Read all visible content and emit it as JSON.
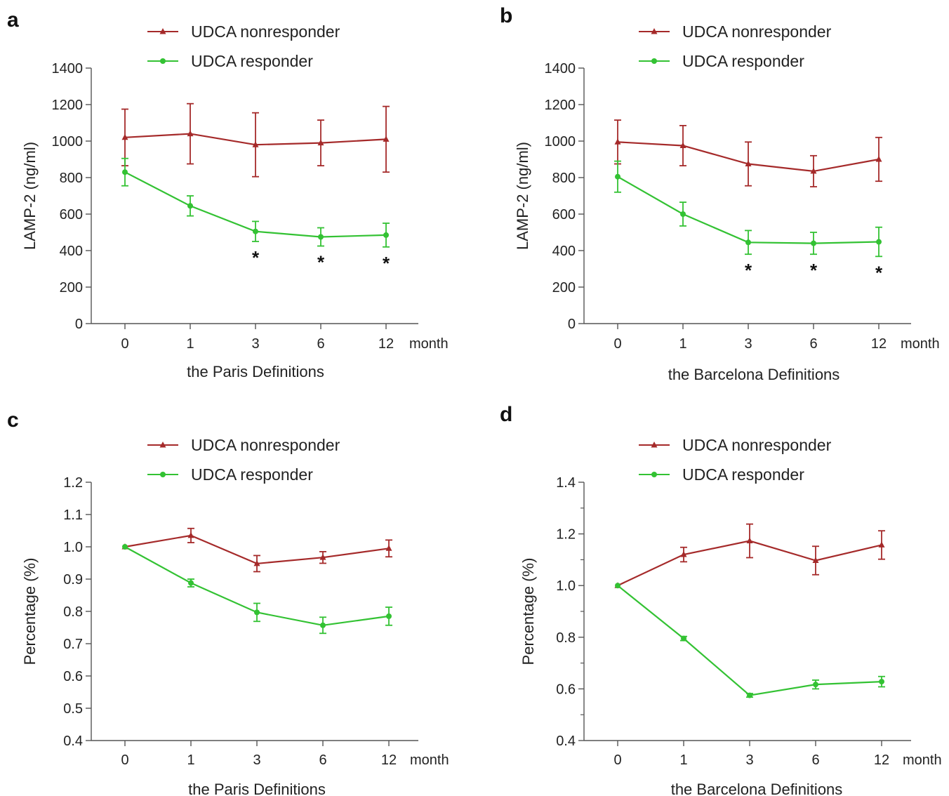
{
  "colors": {
    "nonresponder": "#a52a2a",
    "responder": "#33c233"
  },
  "chart_data": [
    {
      "type": "line",
      "panel": "a",
      "categories": [
        "0",
        "1",
        "3",
        "6",
        "12"
      ],
      "x_unit": "month",
      "xlabel": "the Paris Definitions",
      "ylabel": "LAMP-2 (ng/ml)",
      "ylim": [
        0,
        1400
      ],
      "yticks": [
        "0",
        "200",
        "400",
        "600",
        "800",
        "1000",
        "1200",
        "1400"
      ],
      "series": [
        {
          "name": "UDCA nonresponder",
          "marker": "triangle",
          "values": [
            1020,
            1040,
            980,
            990,
            1010
          ],
          "errors": [
            155,
            165,
            175,
            125,
            180
          ]
        },
        {
          "name": "UDCA responder",
          "marker": "circle",
          "values": [
            830,
            645,
            505,
            475,
            485
          ],
          "errors": [
            75,
            55,
            55,
            50,
            65
          ]
        }
      ],
      "significance": [
        "",
        "",
        "*",
        "*",
        "*"
      ]
    },
    {
      "type": "line",
      "panel": "b",
      "categories": [
        "0",
        "1",
        "3",
        "6",
        "12"
      ],
      "x_unit": "month",
      "xlabel": "the Barcelona Definitions",
      "ylabel": "LAMP-2 (ng/ml)",
      "ylim": [
        0,
        1400
      ],
      "yticks": [
        "0",
        "200",
        "400",
        "600",
        "800",
        "1000",
        "1200",
        "1400"
      ],
      "series": [
        {
          "name": "UDCA nonresponder",
          "marker": "triangle",
          "values": [
            995,
            975,
            875,
            835,
            900
          ],
          "errors": [
            120,
            110,
            120,
            85,
            120
          ]
        },
        {
          "name": "UDCA responder",
          "marker": "circle",
          "values": [
            805,
            600,
            445,
            440,
            448
          ],
          "errors": [
            85,
            65,
            65,
            60,
            80
          ]
        }
      ],
      "significance": [
        "",
        "",
        "*",
        "*",
        "*"
      ]
    },
    {
      "type": "line",
      "panel": "c",
      "categories": [
        "0",
        "1",
        "3",
        "6",
        "12"
      ],
      "x_unit": "month",
      "xlabel": "the Paris Definitions",
      "ylabel": "Percentage (%)",
      "ylim": [
        0.4,
        1.2
      ],
      "yticks": [
        "0.4",
        "0.5",
        "0.6",
        "0.7",
        "0.8",
        "0.9",
        "1.0",
        "1.1",
        "1.2"
      ],
      "series": [
        {
          "name": "UDCA nonresponder",
          "marker": "triangle",
          "values": [
            1.0,
            1.035,
            0.948,
            0.967,
            0.995
          ],
          "errors": [
            0,
            0.022,
            0.025,
            0.018,
            0.026
          ]
        },
        {
          "name": "UDCA responder",
          "marker": "circle",
          "values": [
            1.0,
            0.888,
            0.797,
            0.757,
            0.785
          ],
          "errors": [
            0,
            0.012,
            0.028,
            0.025,
            0.028
          ]
        }
      ],
      "significance": [
        "",
        "",
        "",
        "",
        ""
      ]
    },
    {
      "type": "line",
      "panel": "d",
      "categories": [
        "0",
        "1",
        "3",
        "6",
        "12"
      ],
      "x_unit": "month",
      "xlabel": "the Barcelona Definitions",
      "ylabel": "Percentage (%)",
      "ylim": [
        0.4,
        1.4
      ],
      "yticks": [
        "0.4",
        "0.6",
        "0.8",
        "1.0",
        "1.2",
        "1.4"
      ],
      "series": [
        {
          "name": "UDCA nonresponder",
          "marker": "triangle",
          "values": [
            1.0,
            1.12,
            1.173,
            1.097,
            1.157
          ],
          "errors": [
            0,
            0.028,
            0.065,
            0.055,
            0.055
          ]
        },
        {
          "name": "UDCA responder",
          "marker": "circle",
          "values": [
            1.0,
            0.795,
            0.575,
            0.617,
            0.628
          ],
          "errors": [
            0,
            0.008,
            0.007,
            0.017,
            0.02
          ]
        }
      ],
      "significance": [
        "",
        "",
        "",
        "",
        ""
      ]
    }
  ]
}
